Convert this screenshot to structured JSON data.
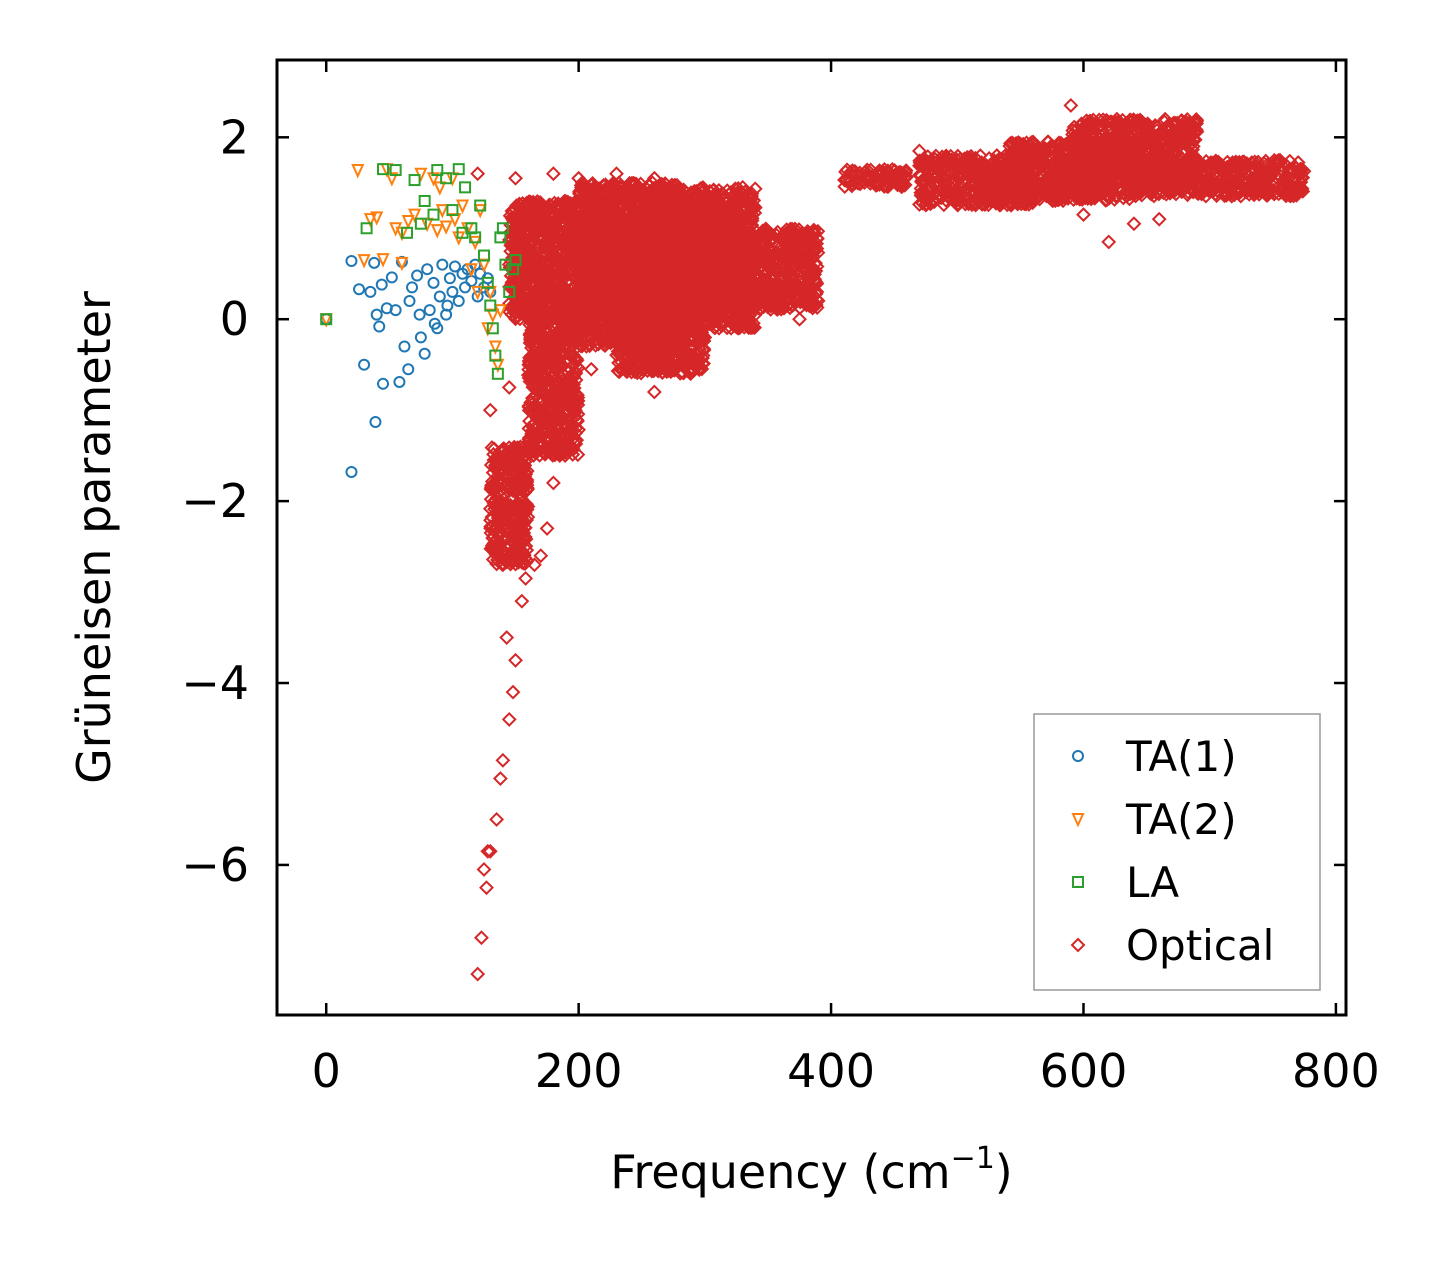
{
  "chart_data": {
    "type": "scatter",
    "title": "",
    "xlabel": "Frequency (cm",
    "xlabel_sup": "−1",
    "xlabel_end": ")",
    "ylabel": "Grüneisen parameter",
    "xlim": [
      -39,
      808
    ],
    "ylim": [
      -7.65,
      2.85
    ],
    "xticks": [
      0,
      200,
      400,
      600,
      800
    ],
    "xtick_labels": [
      "0",
      "200",
      "400",
      "600",
      "800"
    ],
    "yticks": [
      -6,
      -4,
      -2,
      0,
      2
    ],
    "ytick_labels": [
      "−6",
      "−4",
      "−2",
      "0",
      "2"
    ],
    "grid": false,
    "legend_position": "lower-right",
    "series": [
      {
        "name": "TA(1)",
        "marker": "circle",
        "color": "#1f77b4",
        "points": [
          [
            0,
            0
          ],
          [
            20,
            -1.68
          ],
          [
            30,
            -0.5
          ],
          [
            39,
            -1.13
          ],
          [
            45,
            -0.71
          ],
          [
            58,
            -0.69
          ],
          [
            35,
            0.3
          ],
          [
            40,
            0.05
          ],
          [
            42,
            -0.08
          ],
          [
            48,
            0.12
          ],
          [
            52,
            0.46
          ],
          [
            55,
            0.1
          ],
          [
            60,
            0.63
          ],
          [
            62,
            -0.3
          ],
          [
            65,
            -0.55
          ],
          [
            68,
            0.35
          ],
          [
            72,
            0.48
          ],
          [
            75,
            -0.2
          ],
          [
            78,
            -0.38
          ],
          [
            80,
            0.55
          ],
          [
            82,
            0.1
          ],
          [
            85,
            0.4
          ],
          [
            88,
            -0.1
          ],
          [
            90,
            0.25
          ],
          [
            92,
            0.6
          ],
          [
            95,
            0.05
          ],
          [
            98,
            0.45
          ],
          [
            100,
            0.3
          ],
          [
            102,
            0.58
          ],
          [
            105,
            0.2
          ],
          [
            108,
            0.5
          ],
          [
            110,
            0.35
          ],
          [
            112,
            0.55
          ],
          [
            115,
            0.42
          ],
          [
            118,
            0.6
          ],
          [
            120,
            0.25
          ],
          [
            122,
            0.5
          ],
          [
            125,
            0.35
          ],
          [
            128,
            0.45
          ],
          [
            130,
            0.3
          ],
          [
            20,
            0.64
          ],
          [
            38,
            0.62
          ],
          [
            44,
            0.38
          ],
          [
            26,
            0.33
          ],
          [
            66,
            0.2
          ],
          [
            74,
            0.05
          ],
          [
            86,
            -0.05
          ],
          [
            96,
            0.15
          ]
        ]
      },
      {
        "name": "TA(2)",
        "marker": "triangle-down",
        "color": "#ff7f0e",
        "points": [
          [
            0,
            0
          ],
          [
            25,
            1.64
          ],
          [
            30,
            0.65
          ],
          [
            35,
            1.1
          ],
          [
            40,
            1.12
          ],
          [
            48,
            1.65
          ],
          [
            52,
            1.55
          ],
          [
            55,
            1.0
          ],
          [
            60,
            0.95
          ],
          [
            65,
            1.08
          ],
          [
            70,
            1.15
          ],
          [
            75,
            1.6
          ],
          [
            80,
            1.05
          ],
          [
            85,
            1.55
          ],
          [
            88,
            0.98
          ],
          [
            92,
            1.2
          ],
          [
            95,
            1.02
          ],
          [
            100,
            1.55
          ],
          [
            105,
            0.9
          ],
          [
            108,
            1.25
          ],
          [
            112,
            1.0
          ],
          [
            115,
            0.55
          ],
          [
            118,
            0.85
          ],
          [
            120,
            0.3
          ],
          [
            122,
            1.2
          ],
          [
            125,
            0.6
          ],
          [
            128,
            -0.1
          ],
          [
            130,
            0.3
          ],
          [
            132,
            0.05
          ],
          [
            134,
            -0.3
          ],
          [
            136,
            -0.5
          ],
          [
            138,
            0.1
          ],
          [
            102,
            1.1
          ],
          [
            90,
            1.45
          ],
          [
            60,
            0.62
          ],
          [
            45,
            0.66
          ]
        ]
      },
      {
        "name": "LA",
        "marker": "square",
        "color": "#2ca02c",
        "points": [
          [
            0,
            0
          ],
          [
            32,
            1.0
          ],
          [
            45,
            1.65
          ],
          [
            55,
            1.64
          ],
          [
            70,
            1.53
          ],
          [
            78,
            1.3
          ],
          [
            85,
            1.15
          ],
          [
            88,
            1.64
          ],
          [
            95,
            1.55
          ],
          [
            100,
            1.2
          ],
          [
            105,
            1.65
          ],
          [
            110,
            1.45
          ],
          [
            115,
            1.0
          ],
          [
            118,
            0.9
          ],
          [
            122,
            1.25
          ],
          [
            125,
            0.7
          ],
          [
            128,
            0.4
          ],
          [
            130,
            0.15
          ],
          [
            132,
            -0.1
          ],
          [
            134,
            -0.4
          ],
          [
            136,
            -0.6
          ],
          [
            138,
            0.9
          ],
          [
            140,
            1.0
          ],
          [
            142,
            0.6
          ],
          [
            145,
            0.3
          ],
          [
            148,
            0.55
          ],
          [
            150,
            0.65
          ],
          [
            64,
            0.95
          ],
          [
            75,
            1.05
          ],
          [
            108,
            0.95
          ]
        ]
      },
      {
        "name": "Optical",
        "marker": "diamond",
        "color": "#d62728",
        "points": [
          [
            120,
            -7.2
          ],
          [
            123,
            -6.8
          ],
          [
            125,
            -6.05
          ],
          [
            128,
            -5.85
          ],
          [
            130,
            -5.85
          ],
          [
            127,
            -6.25
          ],
          [
            135,
            -5.5
          ],
          [
            140,
            -4.85
          ],
          [
            138,
            -5.05
          ],
          [
            145,
            -4.4
          ],
          [
            148,
            -4.1
          ],
          [
            150,
            -3.75
          ],
          [
            143,
            -3.5
          ],
          [
            155,
            -3.1
          ],
          [
            158,
            -2.85
          ],
          [
            140,
            -2.7
          ],
          [
            165,
            -2.7
          ],
          [
            170,
            -2.6
          ],
          [
            175,
            -2.3
          ],
          [
            180,
            -1.8
          ],
          [
            185,
            -1.5
          ],
          [
            190,
            -1.2
          ],
          [
            170,
            -1.0
          ],
          [
            180,
            -0.8
          ],
          [
            195,
            -0.9
          ],
          [
            130,
            -1.0
          ],
          [
            145,
            -0.75
          ],
          [
            210,
            -0.55
          ],
          [
            250,
            -0.55
          ],
          [
            260,
            -0.8
          ],
          [
            300,
            -0.2
          ],
          [
            340,
            0.05
          ],
          [
            375,
            0.0
          ],
          [
            120,
            1.6
          ],
          [
            150,
            1.55
          ],
          [
            180,
            1.6
          ],
          [
            200,
            1.55
          ],
          [
            230,
            1.6
          ],
          [
            260,
            1.55
          ],
          [
            330,
            1.45
          ],
          [
            380,
            0.9
          ],
          [
            620,
            0.85
          ],
          [
            640,
            1.05
          ],
          [
            660,
            1.1
          ],
          [
            690,
            1.5
          ],
          [
            640,
            1.45
          ],
          [
            600,
            1.15
          ],
          [
            590,
            2.35
          ],
          [
            560,
            1.95
          ],
          [
            470,
            1.85
          ]
        ],
        "bands": [
          {
            "x": [
              130,
              160
            ],
            "y": [
              -2.7,
              -1.4
            ]
          },
          {
            "x": [
              160,
              200
            ],
            "y": [
              -1.5,
              0.2
            ]
          },
          {
            "x": [
              145,
              230
            ],
            "y": [
              0.0,
              1.3
            ]
          },
          {
            "x": [
              200,
              280
            ],
            "y": [
              -0.3,
              1.5
            ]
          },
          {
            "x": [
              230,
              300
            ],
            "y": [
              -0.6,
              1.2
            ]
          },
          {
            "x": [
              260,
              340
            ],
            "y": [
              -0.1,
              1.45
            ]
          },
          {
            "x": [
              300,
              390
            ],
            "y": [
              0.1,
              1.0
            ]
          },
          {
            "x": [
              410,
              460
            ],
            "y": [
              1.45,
              1.65
            ]
          },
          {
            "x": [
              470,
              560
            ],
            "y": [
              1.25,
              1.8
            ]
          },
          {
            "x": [
              540,
              640
            ],
            "y": [
              1.3,
              1.95
            ]
          },
          {
            "x": [
              590,
              690
            ],
            "y": [
              1.5,
              2.2
            ]
          },
          {
            "x": [
              640,
              775
            ],
            "y": [
              1.35,
              1.75
            ]
          }
        ]
      }
    ]
  },
  "legend": {
    "entries": [
      "TA(1)",
      "TA(2)",
      "LA",
      "Optical"
    ]
  }
}
